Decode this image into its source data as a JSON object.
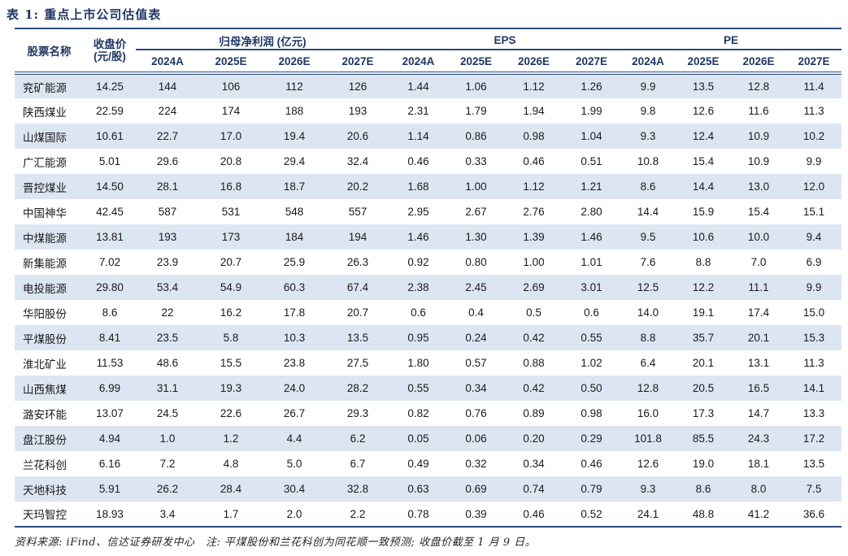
{
  "title": "表 1: 重点上市公司估值表",
  "table": {
    "col_stock": "股票名称",
    "col_close_line1": "收盘价",
    "col_close_line2": "(元/股)",
    "groups": [
      {
        "label": "归母净利润 (亿元)"
      },
      {
        "label": "EPS"
      },
      {
        "label": "PE"
      }
    ],
    "years": [
      "2024A",
      "2025E",
      "2026E",
      "2027E"
    ],
    "rows": [
      {
        "name": "兖矿能源",
        "close": "14.25",
        "profit": [
          "144",
          "106",
          "112",
          "126"
        ],
        "eps": [
          "1.44",
          "1.06",
          "1.12",
          "1.26"
        ],
        "pe": [
          "9.9",
          "13.5",
          "12.8",
          "11.4"
        ]
      },
      {
        "name": "陕西煤业",
        "close": "22.59",
        "profit": [
          "224",
          "174",
          "188",
          "193"
        ],
        "eps": [
          "2.31",
          "1.79",
          "1.94",
          "1.99"
        ],
        "pe": [
          "9.8",
          "12.6",
          "11.6",
          "11.3"
        ]
      },
      {
        "name": "山煤国际",
        "close": "10.61",
        "profit": [
          "22.7",
          "17.0",
          "19.4",
          "20.6"
        ],
        "eps": [
          "1.14",
          "0.86",
          "0.98",
          "1.04"
        ],
        "pe": [
          "9.3",
          "12.4",
          "10.9",
          "10.2"
        ]
      },
      {
        "name": "广汇能源",
        "close": "5.01",
        "profit": [
          "29.6",
          "20.8",
          "29.4",
          "32.4"
        ],
        "eps": [
          "0.46",
          "0.33",
          "0.46",
          "0.51"
        ],
        "pe": [
          "10.8",
          "15.4",
          "10.9",
          "9.9"
        ]
      },
      {
        "name": "晋控煤业",
        "close": "14.50",
        "profit": [
          "28.1",
          "16.8",
          "18.7",
          "20.2"
        ],
        "eps": [
          "1.68",
          "1.00",
          "1.12",
          "1.21"
        ],
        "pe": [
          "8.6",
          "14.4",
          "13.0",
          "12.0"
        ]
      },
      {
        "name": "中国神华",
        "close": "42.45",
        "profit": [
          "587",
          "531",
          "548",
          "557"
        ],
        "eps": [
          "2.95",
          "2.67",
          "2.76",
          "2.80"
        ],
        "pe": [
          "14.4",
          "15.9",
          "15.4",
          "15.1"
        ]
      },
      {
        "name": "中煤能源",
        "close": "13.81",
        "profit": [
          "193",
          "173",
          "184",
          "194"
        ],
        "eps": [
          "1.46",
          "1.30",
          "1.39",
          "1.46"
        ],
        "pe": [
          "9.5",
          "10.6",
          "10.0",
          "9.4"
        ]
      },
      {
        "name": "新集能源",
        "close": "7.02",
        "profit": [
          "23.9",
          "20.7",
          "25.9",
          "26.3"
        ],
        "eps": [
          "0.92",
          "0.80",
          "1.00",
          "1.01"
        ],
        "pe": [
          "7.6",
          "8.8",
          "7.0",
          "6.9"
        ]
      },
      {
        "name": "电投能源",
        "close": "29.80",
        "profit": [
          "53.4",
          "54.9",
          "60.3",
          "67.4"
        ],
        "eps": [
          "2.38",
          "2.45",
          "2.69",
          "3.01"
        ],
        "pe": [
          "12.5",
          "12.2",
          "11.1",
          "9.9"
        ]
      },
      {
        "name": "华阳股份",
        "close": "8.6",
        "profit": [
          "22",
          "16.2",
          "17.8",
          "20.7"
        ],
        "eps": [
          "0.6",
          "0.4",
          "0.5",
          "0.6"
        ],
        "pe": [
          "14.0",
          "19.1",
          "17.4",
          "15.0"
        ]
      },
      {
        "name": "平煤股份",
        "close": "8.41",
        "profit": [
          "23.5",
          "5.8",
          "10.3",
          "13.5"
        ],
        "eps": [
          "0.95",
          "0.24",
          "0.42",
          "0.55"
        ],
        "pe": [
          "8.8",
          "35.7",
          "20.1",
          "15.3"
        ]
      },
      {
        "name": "淮北矿业",
        "close": "11.53",
        "profit": [
          "48.6",
          "15.5",
          "23.8",
          "27.5"
        ],
        "eps": [
          "1.80",
          "0.57",
          "0.88",
          "1.02"
        ],
        "pe": [
          "6.4",
          "20.1",
          "13.1",
          "11.3"
        ]
      },
      {
        "name": "山西焦煤",
        "close": "6.99",
        "profit": [
          "31.1",
          "19.3",
          "24.0",
          "28.2"
        ],
        "eps": [
          "0.55",
          "0.34",
          "0.42",
          "0.50"
        ],
        "pe": [
          "12.8",
          "20.5",
          "16.5",
          "14.1"
        ]
      },
      {
        "name": "潞安环能",
        "close": "13.07",
        "profit": [
          "24.5",
          "22.6",
          "26.7",
          "29.3"
        ],
        "eps": [
          "0.82",
          "0.76",
          "0.89",
          "0.98"
        ],
        "pe": [
          "16.0",
          "17.3",
          "14.7",
          "13.3"
        ]
      },
      {
        "name": "盘江股份",
        "close": "4.94",
        "profit": [
          "1.0",
          "1.2",
          "4.4",
          "6.2"
        ],
        "eps": [
          "0.05",
          "0.06",
          "0.20",
          "0.29"
        ],
        "pe": [
          "101.8",
          "85.5",
          "24.3",
          "17.2"
        ]
      },
      {
        "name": "兰花科创",
        "close": "6.16",
        "profit": [
          "7.2",
          "4.8",
          "5.0",
          "6.7"
        ],
        "eps": [
          "0.49",
          "0.32",
          "0.34",
          "0.46"
        ],
        "pe": [
          "12.6",
          "19.0",
          "18.1",
          "13.5"
        ]
      },
      {
        "name": "天地科技",
        "close": "5.91",
        "profit": [
          "26.2",
          "28.4",
          "30.4",
          "32.8"
        ],
        "eps": [
          "0.63",
          "0.69",
          "0.74",
          "0.79"
        ],
        "pe": [
          "9.3",
          "8.6",
          "8.0",
          "7.5"
        ]
      },
      {
        "name": "天玛智控",
        "close": "18.93",
        "profit": [
          "3.4",
          "1.7",
          "2.0",
          "2.2"
        ],
        "eps": [
          "0.78",
          "0.39",
          "0.46",
          "0.52"
        ],
        "pe": [
          "24.1",
          "48.8",
          "41.2",
          "36.6"
        ]
      }
    ]
  },
  "footer": "资料来源: iFind、信达证券研发中心　注: 平煤股份和兰花科创为同花顺一致预测; 收盘价截至 1 月 9 日。",
  "colors": {
    "heading_navy": "#1f3864",
    "rule_navy": "#2e4d80",
    "row_stripe_blue": "#dce6f2",
    "body_text": "#1a1a1a"
  }
}
